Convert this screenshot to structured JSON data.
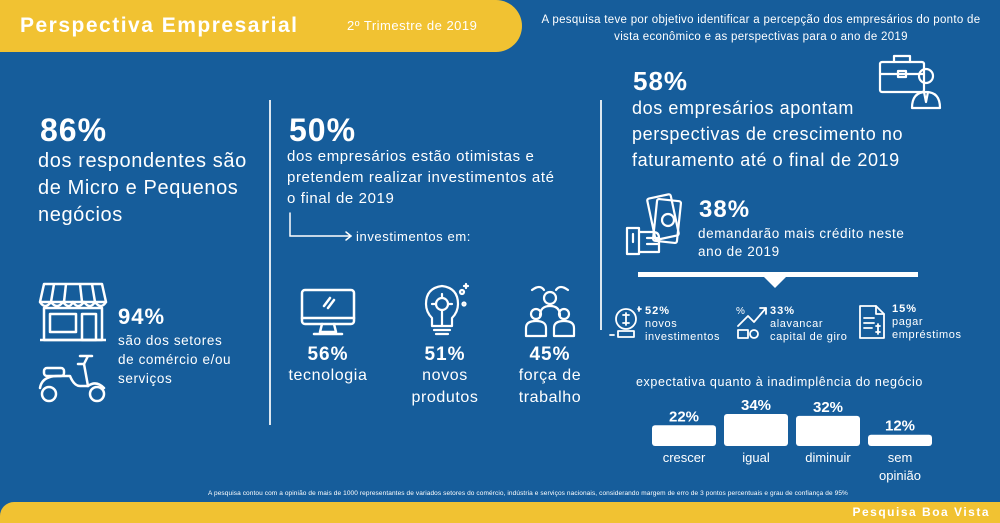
{
  "header": {
    "title": "Perspectiva Empresarial",
    "period": "2º Trimestre de 2019"
  },
  "intro": "A pesquisa teve por objetivo identificar a percepção dos empresários do ponto de vista econômico e as perspectivas para o ano de 2019",
  "left": {
    "pct": "86%",
    "text_1": "dos respondentes são",
    "text_2": "de Micro e Pequenos",
    "text_3": "negócios",
    "sub_pct": "94%",
    "sub_text_1": "são dos setores",
    "sub_text_2": "de comércio e/ou",
    "sub_text_3": "serviços",
    "icons": [
      "store-icon",
      "scooter-icon"
    ]
  },
  "middle": {
    "pct": "50%",
    "text_1": "dos empresários estão otimistas e",
    "text_2": "pretendem realizar investimentos até",
    "text_3": "o final de 2019",
    "arrow_label": "investimentos em:",
    "items": [
      {
        "pct": "56%",
        "line1": "tecnologia",
        "line2": "",
        "icon": "monitor-icon"
      },
      {
        "pct": "51%",
        "line1": "novos",
        "line2": "produtos",
        "icon": "lightbulb-gear-icon"
      },
      {
        "pct": "45%",
        "line1": "força de",
        "line2": "trabalho",
        "icon": "team-icon"
      }
    ]
  },
  "right": {
    "pct": "58%",
    "text_1": "dos empresários apontam",
    "text_2": "perspectivas de crescimento no",
    "text_3": "faturamento até o final de 2019",
    "credit_pct": "38%",
    "credit_text_1": "demandarão mais crédito neste",
    "credit_text_2": "ano de 2019",
    "credit_items": [
      {
        "pct": "52%",
        "line1": "novos",
        "line2": "investimentos",
        "icon": "invest-icon"
      },
      {
        "pct": "33%",
        "line1": "alavancar",
        "line2": "capital de giro",
        "icon": "growth-icon"
      },
      {
        "pct": "15%",
        "line1": "pagar",
        "line2": "empréstimos",
        "icon": "document-icon"
      }
    ],
    "icons": [
      "briefcase-businessman-icon",
      "money-hand-icon"
    ]
  },
  "default_chart": {
    "title": "expectativa quanto à inadimplência do negócio"
  },
  "chart_data": {
    "type": "bar",
    "title": "expectativa quanto à inadimplência do negócio",
    "categories": [
      "crescer",
      "igual",
      "diminuir",
      "sem opinião"
    ],
    "values": [
      22,
      34,
      32,
      12
    ],
    "value_labels": [
      "22%",
      "34%",
      "32%",
      "12%"
    ],
    "category_labels": [
      [
        "crescer"
      ],
      [
        "igual"
      ],
      [
        "diminuir"
      ],
      [
        "sem",
        "opinião"
      ]
    ],
    "ylim": [
      0,
      34
    ],
    "colors": {
      "bar": "#ffffff"
    }
  },
  "footer": {
    "note": "A pesquisa contou com a opinião de mais de 1000 representantes de variados setores do comércio, indústria e serviços nacionais, considerando margem de erro de 3 pontos percentuais e grau de confiança de 95%",
    "brand": "Pesquisa Boa Vista"
  },
  "colors": {
    "background": "#165d9b",
    "accent": "#f1c232",
    "text": "#ffffff"
  }
}
